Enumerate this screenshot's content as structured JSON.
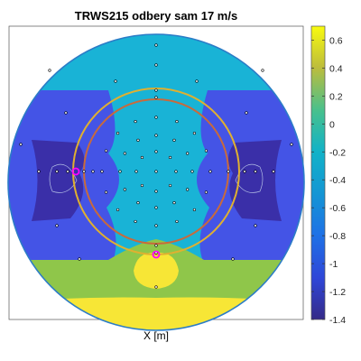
{
  "chart_data": {
    "type": "contour",
    "title": "TRWS215 odbery sam 17 m/s",
    "xlabel": "X [m]",
    "colorbar": {
      "range": [
        -1.4,
        0.7
      ],
      "tick_values": [
        0.6,
        0.4,
        0.2,
        0,
        -0.2,
        -0.4,
        -0.6,
        -0.8,
        -1,
        -1.2,
        -1.4
      ],
      "tick_labels": [
        "0.6",
        "0.4",
        "0.2",
        "0",
        "-0.2",
        "-0.4",
        "-0.6",
        "-0.8",
        "-1",
        "-1.2",
        "-1.4"
      ],
      "colormap": "parula"
    },
    "contour_levels": [
      {
        "level": -1.35,
        "label": "deep-blue"
      },
      {
        "level": -1.05,
        "label": "blue"
      },
      {
        "level": -0.5,
        "label": "cyan"
      },
      {
        "level": 0.2,
        "label": "green"
      },
      {
        "level": 0.6,
        "label": "yellow"
      }
    ],
    "circles": [
      {
        "kind": "domain-boundary"
      },
      {
        "kind": "outer-ring",
        "color": "#e0b030"
      },
      {
        "kind": "inner-ring",
        "color": "#c86a3c"
      }
    ],
    "highlighted_points": [
      {
        "color": "#ff00ff"
      },
      {
        "color": "#ff00ff"
      }
    ]
  },
  "colors": {
    "deep_blue": "#3a2fa8",
    "blue": "#4454e6",
    "cyan": "#19b3d6",
    "green": "#8fc64a",
    "yellow": "#f7e636",
    "boundary": "#2b7cc7"
  }
}
